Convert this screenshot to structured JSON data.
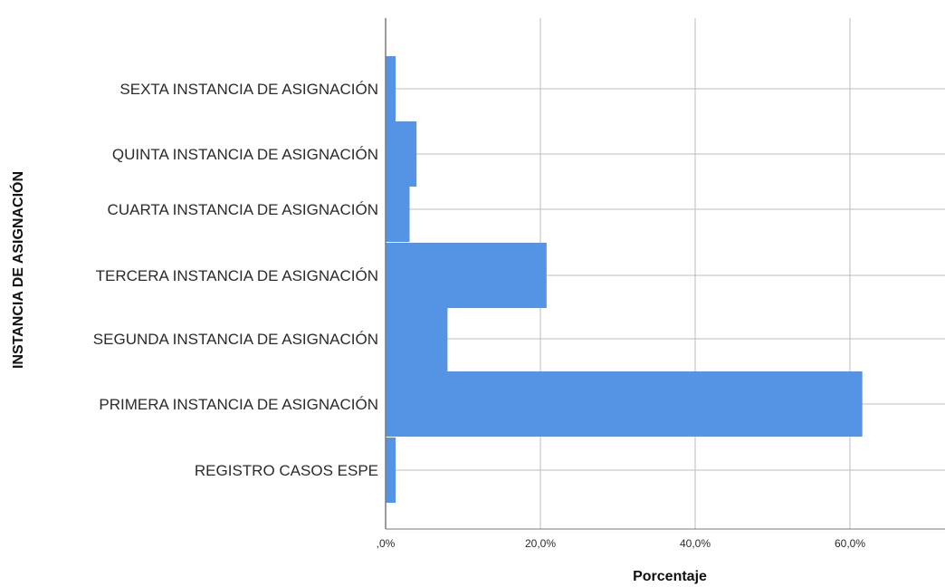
{
  "chart_data": {
    "type": "bar",
    "orientation": "horizontal",
    "categories": [
      "SEXTA INSTANCIA DE ASIGNACIÓN",
      "QUINTA INSTANCIA DE ASIGNACIÓN",
      "CUARTA INSTANCIA DE ASIGNACIÓN",
      "TERCERA INSTANCIA DE ASIGNACIÓN",
      "SEGUNDA INSTANCIA DE ASIGNACIÓN",
      "PRIMERA INSTANCIA DE ASIGNACIÓN",
      "REGISTRO CASOS ESPE"
    ],
    "values": [
      1.3,
      4.0,
      3.1,
      20.8,
      8.0,
      61.6,
      1.3
    ],
    "xlabel": "Porcentaje",
    "ylabel": "INSTANCIA DE ASIGNACIÓN",
    "xlim": [
      0,
      70
    ],
    "x_ticks": [
      0,
      20,
      40,
      60
    ],
    "x_tick_labels": [
      ",0%",
      "20,0%",
      "40,0%",
      "60,0%"
    ],
    "grid": true,
    "bar_color": "#5593e5",
    "grid_color": "#bdbdbd",
    "axis_color": "#7a7a7a"
  }
}
